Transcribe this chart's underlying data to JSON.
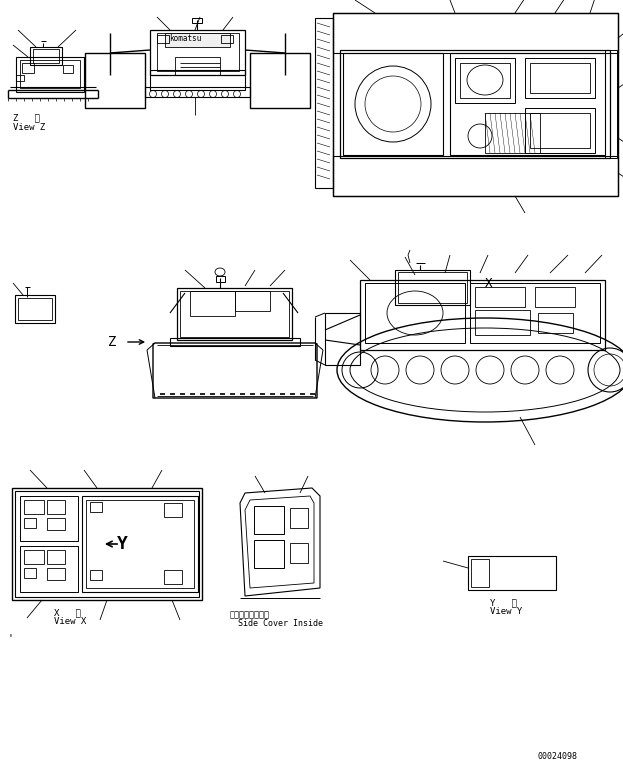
{
  "bg_color": "#ffffff",
  "fig_width": 6.23,
  "fig_height": 7.62,
  "dpi": 100,
  "line_color": "#000000",
  "labels": {
    "view_z_jp": "Z   視",
    "view_z_en": "View Z",
    "view_x_jp": "X   視",
    "view_x_en": "View X",
    "view_y_jp": "Y   視",
    "view_y_en": "View Y",
    "side_cover_jp": "サイドカバー内側",
    "side_cover_en": "Side Cover Inside",
    "drawing_num": "00024098",
    "z_arrow": "Z"
  }
}
